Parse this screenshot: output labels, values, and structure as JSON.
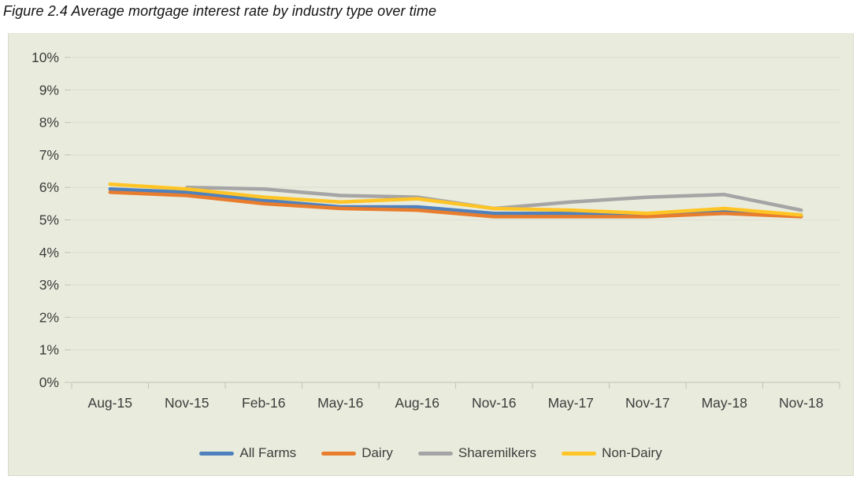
{
  "title": "Figure 2.4 Average mortgage interest rate by industry type over time",
  "chart_data": {
    "type": "line",
    "title": "Figure 2.4 Average mortgage interest rate by industry type over time",
    "categories": [
      "Aug-15",
      "Nov-15",
      "Feb-16",
      "May-16",
      "Aug-16",
      "Nov-16",
      "May-17",
      "Nov-17",
      "May-18",
      "Nov-18"
    ],
    "series": [
      {
        "name": "All Farms",
        "color": "#4E81BD",
        "values": [
          5.95,
          5.85,
          5.6,
          5.4,
          5.4,
          5.2,
          5.2,
          5.2,
          5.25,
          5.15
        ]
      },
      {
        "name": "Dairy",
        "color": "#E87D2E",
        "values": [
          5.85,
          5.75,
          5.5,
          5.35,
          5.3,
          5.1,
          5.1,
          5.1,
          5.2,
          5.1
        ]
      },
      {
        "name": "Sharemilkers",
        "color": "#A5A5A5",
        "values": [
          null,
          6.0,
          5.95,
          5.75,
          5.7,
          5.35,
          5.55,
          5.7,
          5.78,
          5.3
        ]
      },
      {
        "name": "Non-Dairy",
        "color": "#FFC425",
        "values": [
          6.1,
          5.95,
          5.7,
          5.55,
          5.65,
          5.35,
          5.3,
          5.2,
          5.35,
          5.15
        ]
      }
    ],
    "xlabel": "",
    "ylabel": "",
    "ylim": [
      0,
      10
    ],
    "ytick_step": 1,
    "ytick_labels": [
      "0%",
      "1%",
      "2%",
      "3%",
      "4%",
      "5%",
      "6%",
      "7%",
      "8%",
      "9%",
      "10%"
    ],
    "grid": true,
    "legend_position": "bottom",
    "plot_bg": "#E9ECDD",
    "gridline_color": "#DCDFD1",
    "axis_color": "#C6CAB8",
    "text_color": "#3C3C3B",
    "line_width": 4.5
  }
}
